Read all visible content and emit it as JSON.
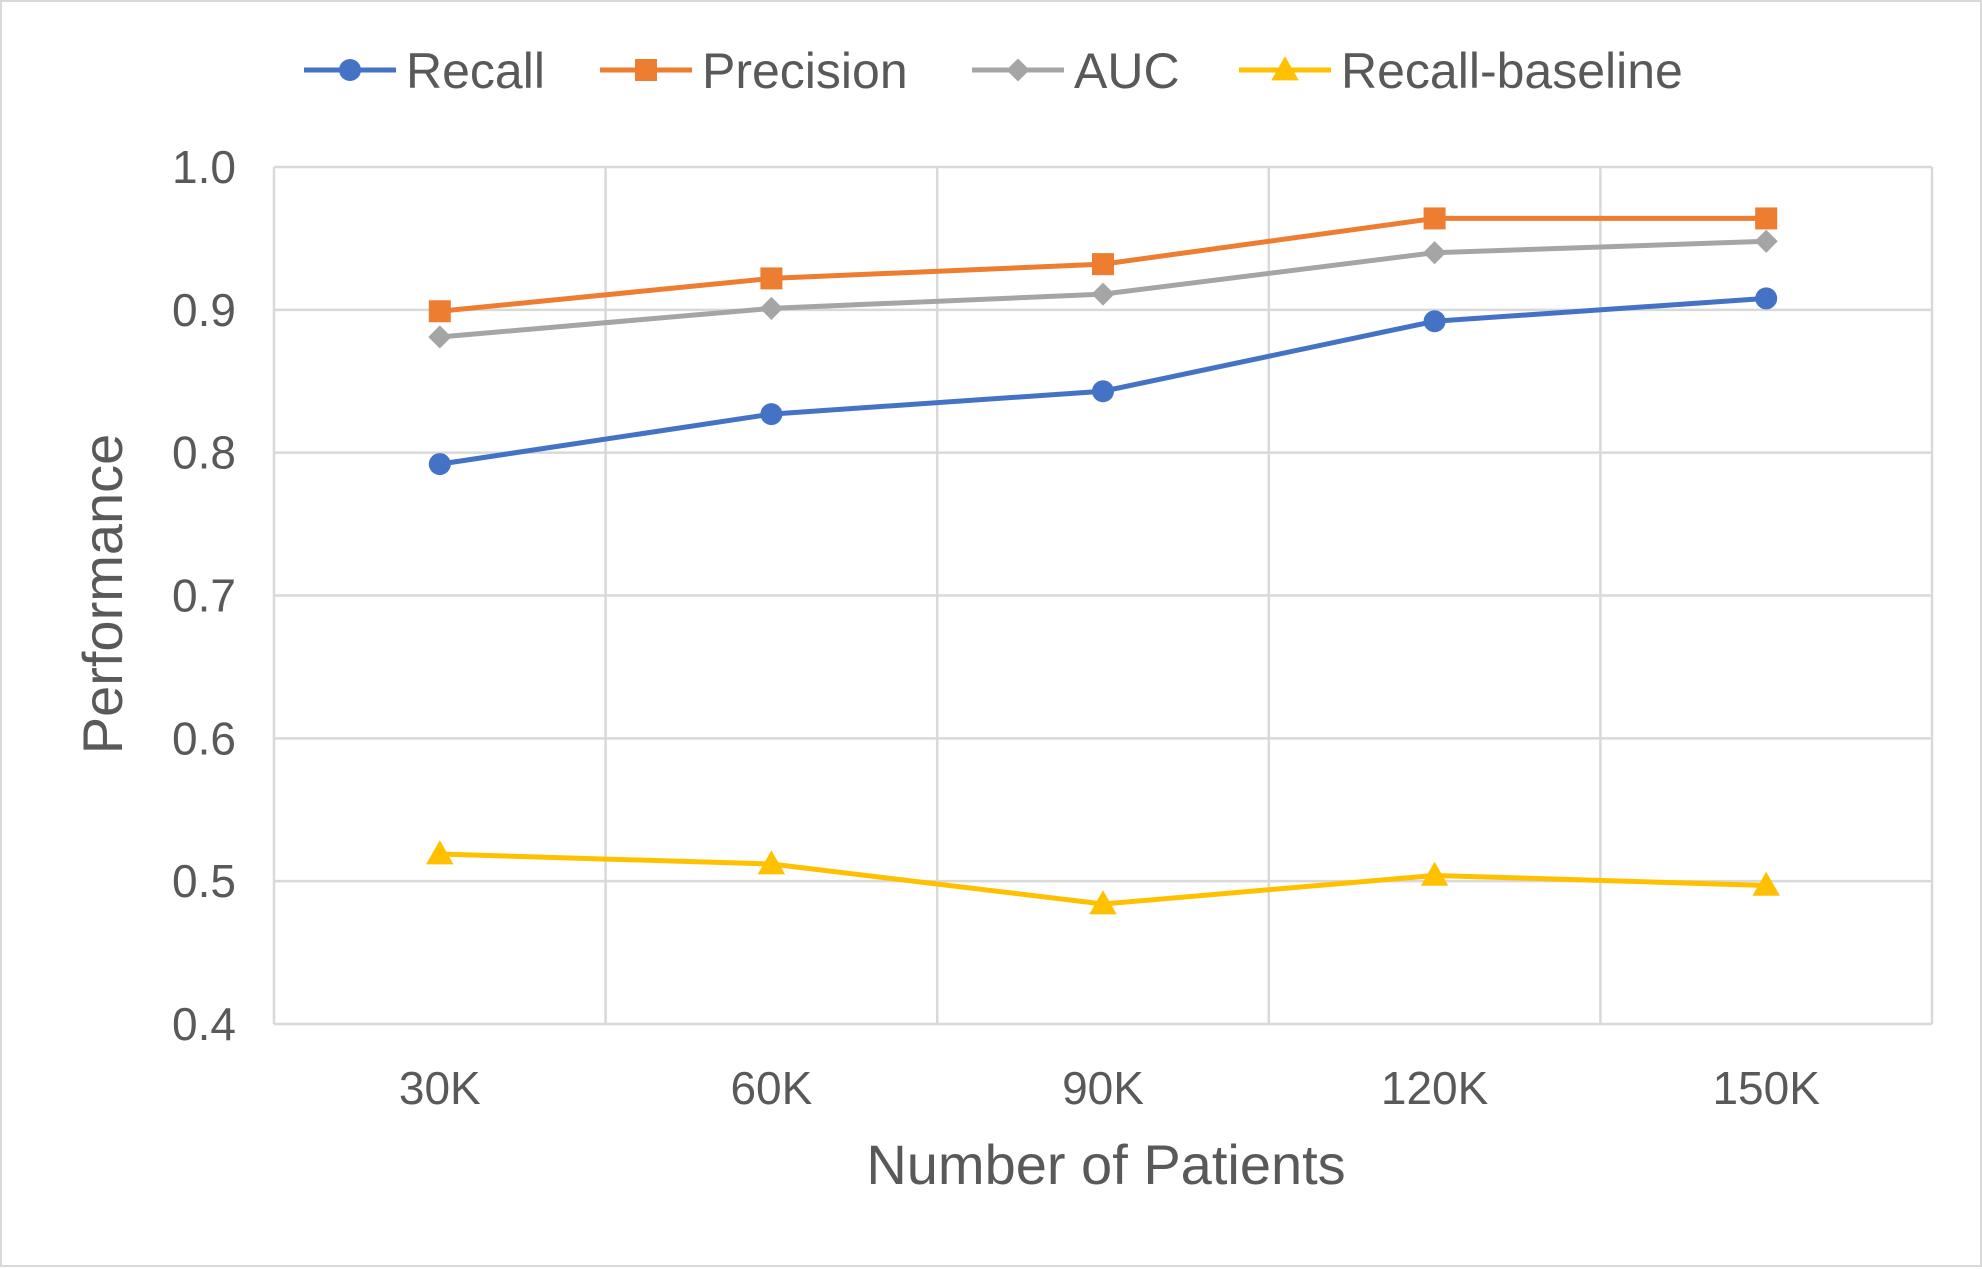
{
  "chart_data": {
    "type": "line",
    "title": "",
    "xlabel": "Number of Patients",
    "ylabel": "Performance",
    "categories": [
      "30K",
      "60K",
      "90K",
      "120K",
      "150K"
    ],
    "ylim": [
      0.4,
      1.0
    ],
    "yticks": [
      0.4,
      0.5,
      0.6,
      0.7,
      0.8,
      0.9,
      1.0
    ],
    "ytick_labels": [
      "0.4",
      "0.5",
      "0.6",
      "0.7",
      "0.8",
      "0.9",
      "1.0"
    ],
    "grid": true,
    "legend_position": "top",
    "series": [
      {
        "name": "Recall",
        "values": [
          0.792,
          0.827,
          0.843,
          0.892,
          0.908
        ],
        "color": "#4472C4",
        "marker": "circle"
      },
      {
        "name": "Precision",
        "values": [
          0.899,
          0.922,
          0.932,
          0.964,
          0.964
        ],
        "color": "#ED7D31",
        "marker": "square"
      },
      {
        "name": "AUC",
        "values": [
          0.881,
          0.901,
          0.911,
          0.94,
          0.948
        ],
        "color": "#A5A5A5",
        "marker": "diamond"
      },
      {
        "name": "Recall-baseline",
        "values": [
          0.519,
          0.512,
          0.484,
          0.504,
          0.497
        ],
        "color": "#FFC000",
        "marker": "triangle"
      }
    ],
    "colors": {
      "grid": "#d9d9d9",
      "text": "#595959"
    }
  }
}
